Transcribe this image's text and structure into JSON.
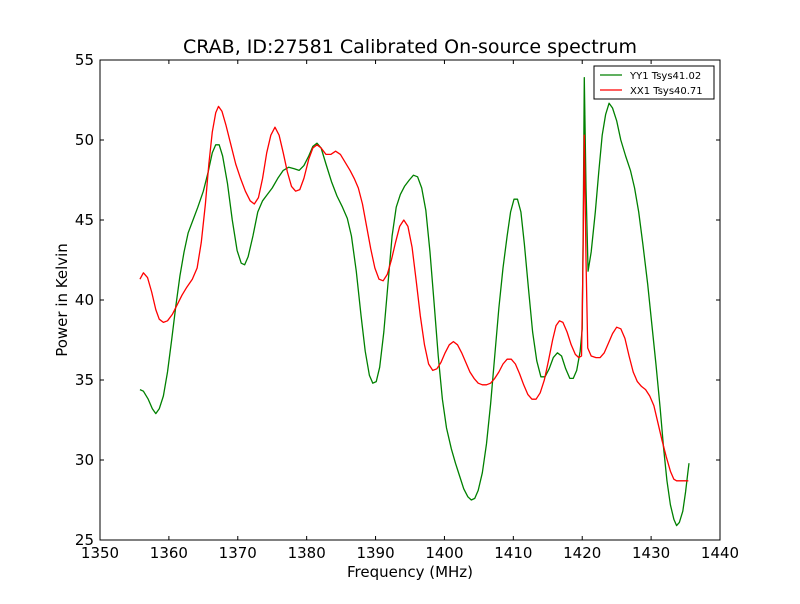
{
  "chart_data": {
    "type": "line",
    "title": "CRAB, ID:27581 Calibrated On-source spectrum",
    "xlabel": "Frequency (MHz)",
    "ylabel": "Power in Kelvin",
    "xlim": [
      1350,
      1440
    ],
    "ylim": [
      25,
      55
    ],
    "xticks": [
      "1350",
      "1360",
      "1370",
      "1380",
      "1390",
      "1400",
      "1410",
      "1420",
      "1430",
      "1440"
    ],
    "yticks": [
      "25",
      "30",
      "35",
      "40",
      "45",
      "50",
      "55"
    ],
    "grid": false,
    "legend_position": "top-right",
    "series": [
      {
        "name": "YY1 Tsys41.02",
        "color": "#008000",
        "points": [
          [
            1355.8,
            34.4
          ],
          [
            1356.3,
            34.3
          ],
          [
            1357.0,
            33.8
          ],
          [
            1357.6,
            33.2
          ],
          [
            1358.1,
            32.9
          ],
          [
            1358.6,
            33.2
          ],
          [
            1359.2,
            34.0
          ],
          [
            1359.8,
            35.5
          ],
          [
            1360.4,
            37.5
          ],
          [
            1361.0,
            39.6
          ],
          [
            1361.6,
            41.5
          ],
          [
            1362.2,
            43.0
          ],
          [
            1362.8,
            44.2
          ],
          [
            1363.5,
            45.0
          ],
          [
            1364.2,
            45.8
          ],
          [
            1365.0,
            46.8
          ],
          [
            1365.7,
            48.0
          ],
          [
            1366.3,
            49.2
          ],
          [
            1366.8,
            49.7
          ],
          [
            1367.3,
            49.7
          ],
          [
            1367.8,
            49.0
          ],
          [
            1368.5,
            47.3
          ],
          [
            1369.2,
            45.0
          ],
          [
            1369.9,
            43.1
          ],
          [
            1370.5,
            42.3
          ],
          [
            1371.0,
            42.2
          ],
          [
            1371.5,
            42.7
          ],
          [
            1372.2,
            44.0
          ],
          [
            1372.9,
            45.5
          ],
          [
            1373.6,
            46.2
          ],
          [
            1374.3,
            46.6
          ],
          [
            1375.0,
            47.0
          ],
          [
            1375.8,
            47.6
          ],
          [
            1376.6,
            48.1
          ],
          [
            1377.4,
            48.3
          ],
          [
            1378.2,
            48.2
          ],
          [
            1378.9,
            48.1
          ],
          [
            1379.6,
            48.4
          ],
          [
            1380.3,
            49.0
          ],
          [
            1380.9,
            49.6
          ],
          [
            1381.5,
            49.8
          ],
          [
            1382.1,
            49.5
          ],
          [
            1382.8,
            48.5
          ],
          [
            1383.6,
            47.4
          ],
          [
            1384.4,
            46.5
          ],
          [
            1385.2,
            45.8
          ],
          [
            1385.9,
            45.1
          ],
          [
            1386.5,
            44.0
          ],
          [
            1387.2,
            41.8
          ],
          [
            1387.9,
            39.0
          ],
          [
            1388.5,
            36.8
          ],
          [
            1389.1,
            35.3
          ],
          [
            1389.6,
            34.8
          ],
          [
            1390.1,
            34.9
          ],
          [
            1390.6,
            35.8
          ],
          [
            1391.2,
            38.0
          ],
          [
            1391.8,
            41.0
          ],
          [
            1392.4,
            44.0
          ],
          [
            1393.0,
            45.8
          ],
          [
            1393.6,
            46.6
          ],
          [
            1394.2,
            47.1
          ],
          [
            1394.9,
            47.5
          ],
          [
            1395.5,
            47.8
          ],
          [
            1396.1,
            47.7
          ],
          [
            1396.7,
            47.0
          ],
          [
            1397.3,
            45.6
          ],
          [
            1397.9,
            43.0
          ],
          [
            1398.5,
            39.8
          ],
          [
            1399.1,
            36.5
          ],
          [
            1399.7,
            33.8
          ],
          [
            1400.3,
            32.0
          ],
          [
            1401.0,
            30.7
          ],
          [
            1401.6,
            29.8
          ],
          [
            1402.2,
            29.0
          ],
          [
            1402.8,
            28.2
          ],
          [
            1403.4,
            27.7
          ],
          [
            1403.9,
            27.5
          ],
          [
            1404.4,
            27.6
          ],
          [
            1404.9,
            28.1
          ],
          [
            1405.5,
            29.2
          ],
          [
            1406.1,
            31.0
          ],
          [
            1406.7,
            33.5
          ],
          [
            1407.3,
            36.5
          ],
          [
            1407.9,
            39.5
          ],
          [
            1408.5,
            42.0
          ],
          [
            1409.1,
            44.0
          ],
          [
            1409.6,
            45.5
          ],
          [
            1410.1,
            46.3
          ],
          [
            1410.6,
            46.3
          ],
          [
            1411.1,
            45.5
          ],
          [
            1411.6,
            43.5
          ],
          [
            1412.2,
            40.7
          ],
          [
            1412.8,
            38.0
          ],
          [
            1413.4,
            36.2
          ],
          [
            1414.0,
            35.2
          ],
          [
            1414.6,
            35.2
          ],
          [
            1415.2,
            35.7
          ],
          [
            1415.8,
            36.4
          ],
          [
            1416.4,
            36.7
          ],
          [
            1417.0,
            36.5
          ],
          [
            1417.6,
            35.7
          ],
          [
            1418.2,
            35.1
          ],
          [
            1418.7,
            35.1
          ],
          [
            1419.2,
            35.6
          ],
          [
            1419.7,
            36.8
          ],
          [
            1420.0,
            38.2
          ],
          [
            1420.15,
            45.0
          ],
          [
            1420.3,
            53.9
          ],
          [
            1420.55,
            47.0
          ],
          [
            1420.85,
            41.8
          ],
          [
            1421.3,
            43.0
          ],
          [
            1421.9,
            45.5
          ],
          [
            1422.4,
            48.0
          ],
          [
            1422.9,
            50.3
          ],
          [
            1423.4,
            51.6
          ],
          [
            1423.9,
            52.3
          ],
          [
            1424.4,
            52.0
          ],
          [
            1425.0,
            51.2
          ],
          [
            1425.6,
            50.0
          ],
          [
            1426.3,
            49.0
          ],
          [
            1427.0,
            48.1
          ],
          [
            1427.6,
            47.0
          ],
          [
            1428.2,
            45.5
          ],
          [
            1428.8,
            43.5
          ],
          [
            1429.5,
            41.0
          ],
          [
            1430.1,
            38.5
          ],
          [
            1430.7,
            36.0
          ],
          [
            1431.3,
            33.3
          ],
          [
            1431.8,
            30.8
          ],
          [
            1432.3,
            28.7
          ],
          [
            1432.8,
            27.2
          ],
          [
            1433.3,
            26.3
          ],
          [
            1433.7,
            25.9
          ],
          [
            1434.1,
            26.1
          ],
          [
            1434.6,
            26.8
          ],
          [
            1435.0,
            28.0
          ],
          [
            1435.3,
            29.1
          ],
          [
            1435.5,
            29.8
          ]
        ]
      },
      {
        "name": "XX1 Tsys40.71",
        "color": "#ff0000",
        "points": [
          [
            1355.8,
            41.3
          ],
          [
            1356.3,
            41.7
          ],
          [
            1356.9,
            41.4
          ],
          [
            1357.5,
            40.5
          ],
          [
            1358.1,
            39.4
          ],
          [
            1358.6,
            38.8
          ],
          [
            1359.2,
            38.6
          ],
          [
            1359.8,
            38.7
          ],
          [
            1360.5,
            39.1
          ],
          [
            1361.2,
            39.7
          ],
          [
            1361.9,
            40.3
          ],
          [
            1362.6,
            40.8
          ],
          [
            1363.4,
            41.3
          ],
          [
            1364.1,
            42.0
          ],
          [
            1364.7,
            43.6
          ],
          [
            1365.3,
            46.0
          ],
          [
            1365.8,
            48.5
          ],
          [
            1366.3,
            50.5
          ],
          [
            1366.8,
            51.7
          ],
          [
            1367.2,
            52.1
          ],
          [
            1367.7,
            51.8
          ],
          [
            1368.3,
            50.9
          ],
          [
            1369.0,
            49.7
          ],
          [
            1369.7,
            48.5
          ],
          [
            1370.4,
            47.6
          ],
          [
            1371.1,
            46.8
          ],
          [
            1371.8,
            46.2
          ],
          [
            1372.4,
            46.0
          ],
          [
            1373.0,
            46.4
          ],
          [
            1373.6,
            47.6
          ],
          [
            1374.2,
            49.2
          ],
          [
            1374.8,
            50.3
          ],
          [
            1375.4,
            50.8
          ],
          [
            1376.0,
            50.3
          ],
          [
            1376.6,
            49.2
          ],
          [
            1377.2,
            48.0
          ],
          [
            1377.8,
            47.1
          ],
          [
            1378.4,
            46.8
          ],
          [
            1379.0,
            46.9
          ],
          [
            1379.6,
            47.6
          ],
          [
            1380.3,
            48.8
          ],
          [
            1380.9,
            49.5
          ],
          [
            1381.5,
            49.7
          ],
          [
            1382.1,
            49.5
          ],
          [
            1382.8,
            49.1
          ],
          [
            1383.5,
            49.1
          ],
          [
            1384.2,
            49.3
          ],
          [
            1384.9,
            49.1
          ],
          [
            1385.6,
            48.6
          ],
          [
            1386.3,
            48.1
          ],
          [
            1386.9,
            47.6
          ],
          [
            1387.5,
            47.0
          ],
          [
            1388.1,
            46.0
          ],
          [
            1388.7,
            44.6
          ],
          [
            1389.3,
            43.2
          ],
          [
            1389.9,
            42.0
          ],
          [
            1390.5,
            41.3
          ],
          [
            1391.1,
            41.2
          ],
          [
            1391.7,
            41.6
          ],
          [
            1392.3,
            42.5
          ],
          [
            1392.9,
            43.6
          ],
          [
            1393.5,
            44.6
          ],
          [
            1394.1,
            45.0
          ],
          [
            1394.7,
            44.6
          ],
          [
            1395.3,
            43.3
          ],
          [
            1395.9,
            41.2
          ],
          [
            1396.5,
            39.0
          ],
          [
            1397.1,
            37.2
          ],
          [
            1397.7,
            36.0
          ],
          [
            1398.3,
            35.6
          ],
          [
            1398.9,
            35.7
          ],
          [
            1399.5,
            36.1
          ],
          [
            1400.1,
            36.7
          ],
          [
            1400.7,
            37.2
          ],
          [
            1401.3,
            37.4
          ],
          [
            1401.9,
            37.2
          ],
          [
            1402.5,
            36.7
          ],
          [
            1403.1,
            36.1
          ],
          [
            1403.7,
            35.5
          ],
          [
            1404.3,
            35.1
          ],
          [
            1404.9,
            34.8
          ],
          [
            1405.5,
            34.7
          ],
          [
            1406.1,
            34.7
          ],
          [
            1406.7,
            34.8
          ],
          [
            1407.3,
            35.1
          ],
          [
            1407.9,
            35.5
          ],
          [
            1408.5,
            36.0
          ],
          [
            1409.1,
            36.3
          ],
          [
            1409.7,
            36.3
          ],
          [
            1410.3,
            36.0
          ],
          [
            1410.9,
            35.4
          ],
          [
            1411.5,
            34.7
          ],
          [
            1412.1,
            34.1
          ],
          [
            1412.7,
            33.8
          ],
          [
            1413.3,
            33.8
          ],
          [
            1413.9,
            34.2
          ],
          [
            1414.5,
            35.0
          ],
          [
            1415.1,
            36.2
          ],
          [
            1415.7,
            37.5
          ],
          [
            1416.2,
            38.4
          ],
          [
            1416.7,
            38.7
          ],
          [
            1417.2,
            38.6
          ],
          [
            1417.8,
            38.0
          ],
          [
            1418.4,
            37.2
          ],
          [
            1419.0,
            36.6
          ],
          [
            1419.5,
            36.4
          ],
          [
            1419.9,
            36.5
          ],
          [
            1420.1,
            42.0
          ],
          [
            1420.3,
            50.3
          ],
          [
            1420.55,
            42.5
          ],
          [
            1420.8,
            37.0
          ],
          [
            1421.3,
            36.5
          ],
          [
            1422.0,
            36.4
          ],
          [
            1422.6,
            36.4
          ],
          [
            1423.2,
            36.7
          ],
          [
            1423.8,
            37.3
          ],
          [
            1424.4,
            37.9
          ],
          [
            1425.0,
            38.3
          ],
          [
            1425.6,
            38.2
          ],
          [
            1426.2,
            37.6
          ],
          [
            1426.8,
            36.5
          ],
          [
            1427.4,
            35.5
          ],
          [
            1428.0,
            34.9
          ],
          [
            1428.6,
            34.6
          ],
          [
            1429.2,
            34.4
          ],
          [
            1429.8,
            34.0
          ],
          [
            1430.4,
            33.4
          ],
          [
            1431.0,
            32.3
          ],
          [
            1431.6,
            31.2
          ],
          [
            1432.2,
            30.2
          ],
          [
            1432.8,
            29.3
          ],
          [
            1433.3,
            28.8
          ],
          [
            1433.7,
            28.7
          ],
          [
            1434.3,
            28.7
          ],
          [
            1434.9,
            28.7
          ],
          [
            1435.4,
            28.7
          ]
        ]
      }
    ]
  }
}
